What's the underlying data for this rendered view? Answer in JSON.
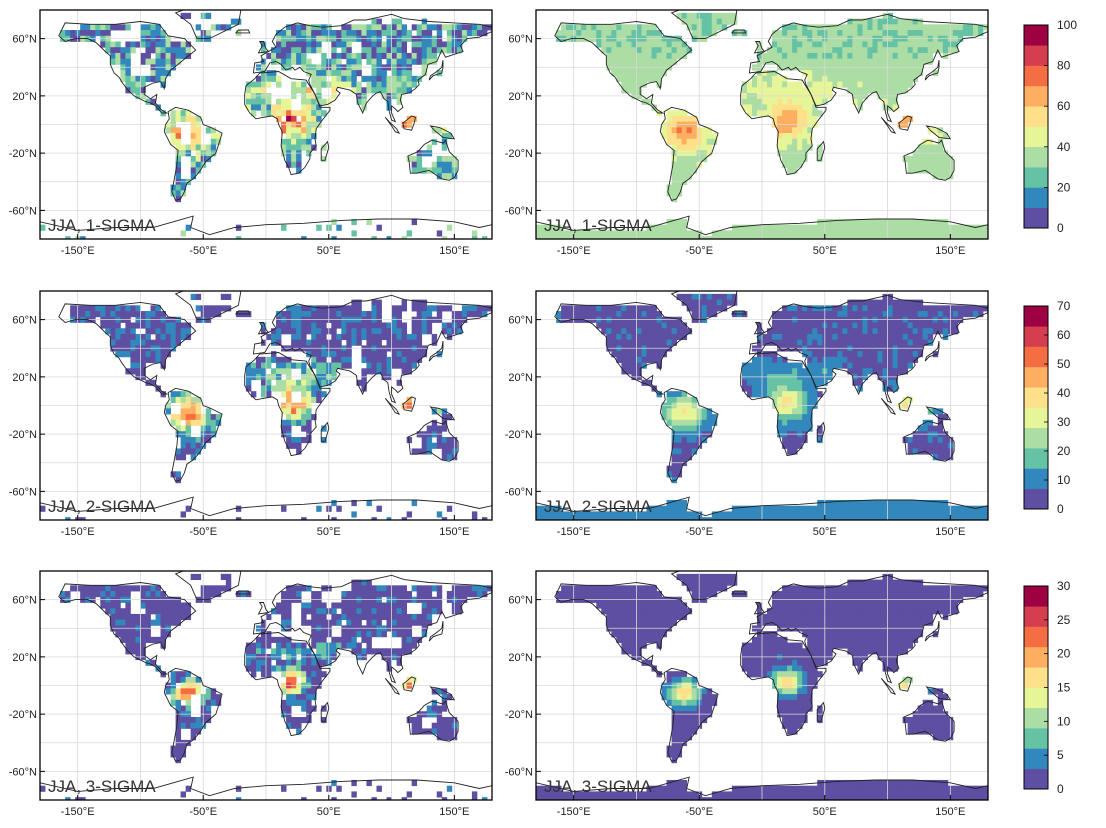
{
  "figure": {
    "rows": [
      {
        "scale": {
          "ticks": [
            "0",
            "20",
            "40",
            "60",
            "80",
            "100"
          ],
          "max": 100
        },
        "panels": [
          {
            "label": "JJA, 1-SIGMA",
            "lat_ticks": [
              "60°N",
              "20°N",
              "-20°N",
              "-60°N"
            ],
            "lon_ticks": [
              "-150°E",
              "-50°E",
              "50°E",
              "150°E"
            ]
          },
          {
            "label": "JJA, 1-SIGMA",
            "lat_ticks": [
              "60°N",
              "20°N",
              "-20°N",
              "-60°N"
            ],
            "lon_ticks": [
              "-150°E",
              "-50°E",
              "50°E",
              "150°E"
            ]
          }
        ]
      },
      {
        "scale": {
          "ticks": [
            "0",
            "10",
            "20",
            "30",
            "40",
            "50",
            "60",
            "70"
          ],
          "max": 70
        },
        "panels": [
          {
            "label": "JJA, 2-SIGMA",
            "lat_ticks": [
              "60°N",
              "20°N",
              "-20°N",
              "-60°N"
            ],
            "lon_ticks": [
              "-150°E",
              "-50°E",
              "50°E",
              "150°E"
            ]
          },
          {
            "label": "JJA, 2-SIGMA",
            "lat_ticks": [
              "60°N",
              "20°N",
              "-20°N",
              "-60°N"
            ],
            "lon_ticks": [
              "-150°E",
              "-50°E",
              "50°E",
              "150°E"
            ]
          }
        ]
      },
      {
        "scale": {
          "ticks": [
            "0",
            "5",
            "10",
            "15",
            "20",
            "25",
            "30"
          ],
          "max": 30
        },
        "panels": [
          {
            "label": "JJA, 3-SIGMA",
            "lat_ticks": [
              "60°N",
              "20°N",
              "-20°N",
              "-60°N"
            ],
            "lon_ticks": [
              "-150°E",
              "-50°E",
              "50°E",
              "150°E"
            ]
          },
          {
            "label": "JJA, 3-SIGMA",
            "lat_ticks": [
              "60°N",
              "20°N",
              "-20°N",
              "-60°N"
            ],
            "lon_ticks": [
              "-150°E",
              "-50°E",
              "50°E",
              "150°E"
            ]
          }
        ]
      }
    ],
    "colormap": [
      "#5e4fa2",
      "#3288bd",
      "#66c2a5",
      "#abdda4",
      "#e6f598",
      "#fee08b",
      "#fdae61",
      "#f46d43",
      "#d53e4f",
      "#9e0142"
    ],
    "colors": {
      "land_gap": "#ffffff",
      "grid": "#d8d8d8",
      "frame": "#000000",
      "coast": "#222222"
    }
  }
}
